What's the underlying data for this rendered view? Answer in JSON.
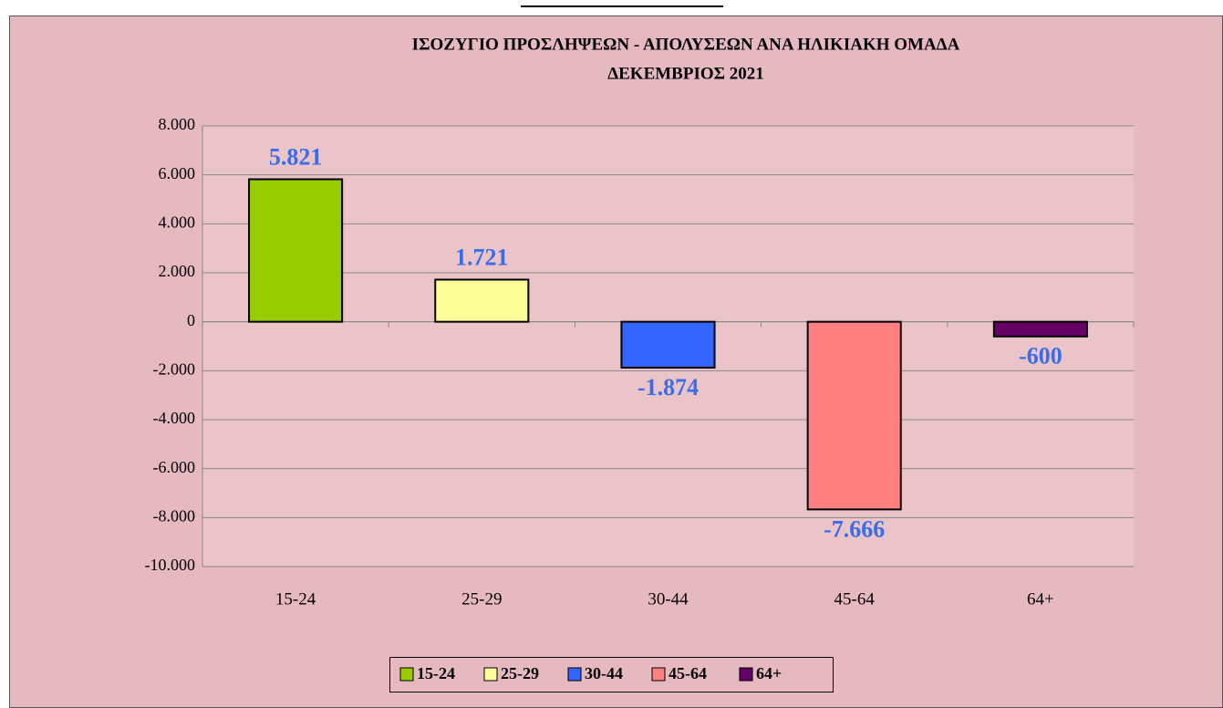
{
  "chart_data": {
    "type": "bar",
    "title": "ΙΣΟΖΥΓΙΟ  ΠΡΟΣΛΗΨΕΩΝ - ΑΠΟΛΥΣΕΩΝ ΑΝΑ ΗΛΙΚΙΑΚΗ ΟΜΑΔΑ",
    "subtitle": "ΔΕΚΕΜΒΡΙΟΣ  2021",
    "categories": [
      "15-24",
      "25-29",
      "30-44",
      "45-64",
      "64+"
    ],
    "values": [
      5821,
      1721,
      -1874,
      -7666,
      -600
    ],
    "value_labels": [
      "5.821",
      "1.721",
      "-1.874",
      "-7.666",
      "-600"
    ],
    "colors": [
      "#99cc00",
      "#ffff99",
      "#3366ff",
      "#ff8080",
      "#660066"
    ],
    "ylim": [
      -10000,
      8000
    ],
    "yticks": [
      {
        "value": -10000,
        "label": "-10.000"
      },
      {
        "value": -8000,
        "label": "-8.000"
      },
      {
        "value": -6000,
        "label": "-6.000"
      },
      {
        "value": -4000,
        "label": "-4.000"
      },
      {
        "value": -2000,
        "label": "-2.000"
      },
      0,
      {
        "value": 2000,
        "label": "2.000"
      },
      {
        "value": 4000,
        "label": "4.000"
      },
      {
        "value": 6000,
        "label": "6.000"
      },
      {
        "value": 8000,
        "label": "8.000"
      }
    ],
    "grid": true,
    "legend": "bottom"
  }
}
